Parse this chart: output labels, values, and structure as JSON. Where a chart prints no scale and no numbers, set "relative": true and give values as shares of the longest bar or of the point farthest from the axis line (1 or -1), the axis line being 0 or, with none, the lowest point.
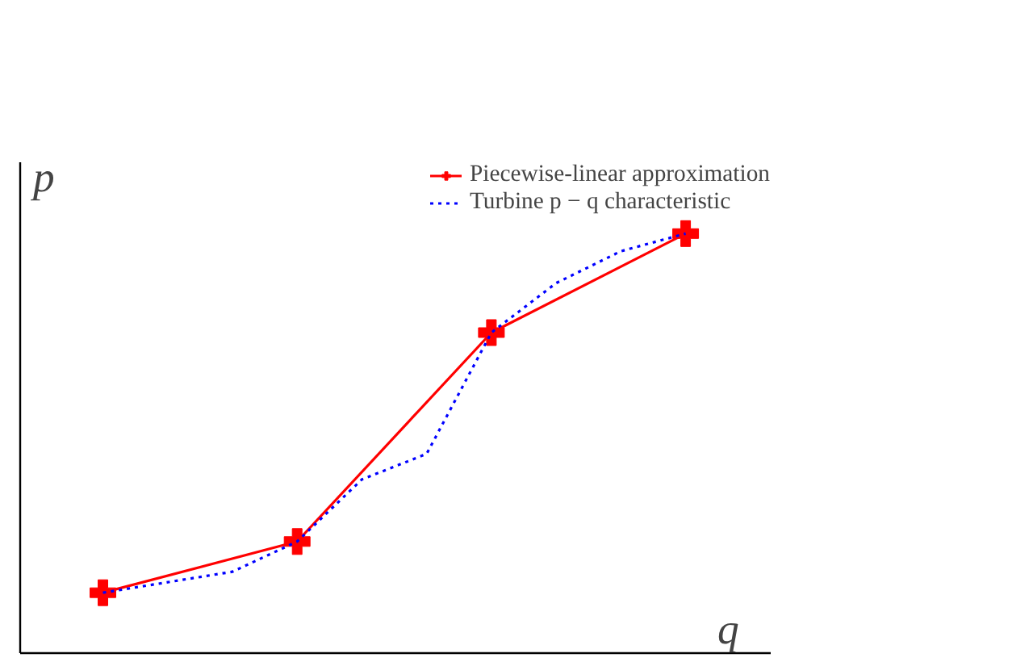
{
  "chart_data": {
    "type": "line",
    "relative": true,
    "xlabel": "q",
    "ylabel": "p",
    "legend": "top right",
    "grid": false,
    "categories": [
      null,
      null,
      null,
      null,
      null,
      null,
      null,
      null,
      null,
      null,
      null,
      null,
      null,
      null,
      null,
      null,
      null,
      null,
      null
    ],
    "series": [
      {
        "name": "Piecewise-linear approximation",
        "color": "#ff0000",
        "marker": "cross",
        "line_style": "solid",
        "values": [
          0.144,
          null,
          null,
          null,
          null,
          null,
          0.266,
          null,
          null,
          null,
          null,
          null,
          0.764,
          null,
          null,
          null,
          null,
          null,
          1.0
        ]
      },
      {
        "name": "Turbine p − q characteristic",
        "color": "#0000ff",
        "marker": "none",
        "line_style": "dotted",
        "values": [
          0.144,
          null,
          null,
          null,
          0.194,
          null,
          0.266,
          null,
          0.414,
          null,
          0.475,
          null,
          0.764,
          null,
          0.882,
          null,
          0.958,
          null,
          1.0
        ]
      }
    ]
  }
}
